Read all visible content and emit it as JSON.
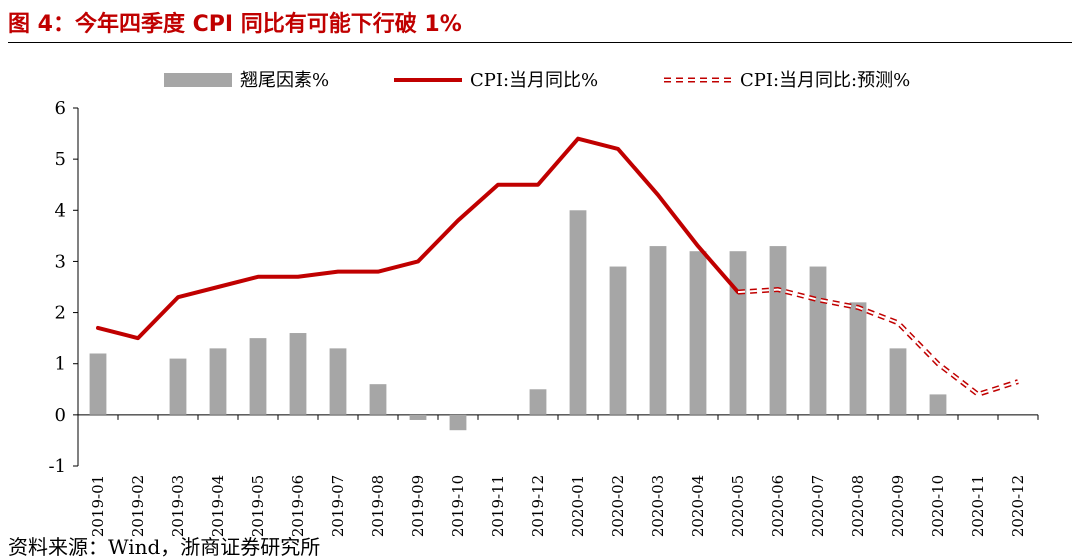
{
  "header": {
    "title": "图 4：今年四季度 CPI 同比有可能下行破 1%"
  },
  "footer": {
    "source": "资料来源：Wind，浙商证券研究所"
  },
  "colors": {
    "bar": "#a6a6a6",
    "line": "#c00000",
    "axis": "#000000"
  },
  "chart_data": {
    "type": "bar",
    "title": "今年四季度 CPI 同比有可能下行破 1%",
    "xlabel": "",
    "ylabel": "",
    "ylim": [
      -1,
      6
    ],
    "yticks": [
      -1,
      0,
      1,
      2,
      3,
      4,
      5,
      6
    ],
    "legend_position": "top",
    "categories": [
      "2019-01",
      "2019-02",
      "2019-03",
      "2019-04",
      "2019-05",
      "2019-06",
      "2019-07",
      "2019-08",
      "2019-09",
      "2019-10",
      "2019-11",
      "2019-12",
      "2020-01",
      "2020-02",
      "2020-03",
      "2020-04",
      "2020-05",
      "2020-06",
      "2020-07",
      "2020-08",
      "2020-09",
      "2020-10",
      "2020-11",
      "2020-12"
    ],
    "series": [
      {
        "name": "翘尾因素%",
        "kind": "bar",
        "values": [
          1.2,
          0.0,
          1.1,
          1.3,
          1.5,
          1.6,
          1.3,
          0.6,
          -0.1,
          -0.3,
          0.0,
          0.5,
          4.0,
          2.9,
          3.3,
          3.2,
          3.2,
          3.3,
          2.9,
          2.2,
          1.3,
          0.4,
          0.0,
          0.0
        ]
      },
      {
        "name": "CPI:当月同比%",
        "kind": "line",
        "values": [
          1.7,
          1.5,
          2.3,
          2.5,
          2.7,
          2.7,
          2.8,
          2.8,
          3.0,
          3.8,
          4.5,
          4.5,
          5.4,
          5.2,
          4.3,
          3.3,
          2.4,
          null,
          null,
          null,
          null,
          null,
          null,
          null
        ]
      },
      {
        "name": "CPI:当月同比:预测%",
        "kind": "dashed-line",
        "values": [
          null,
          null,
          null,
          null,
          null,
          null,
          null,
          null,
          null,
          null,
          null,
          null,
          null,
          null,
          null,
          null,
          2.4,
          2.45,
          2.25,
          2.1,
          1.8,
          1.0,
          0.4,
          0.65
        ]
      }
    ]
  }
}
